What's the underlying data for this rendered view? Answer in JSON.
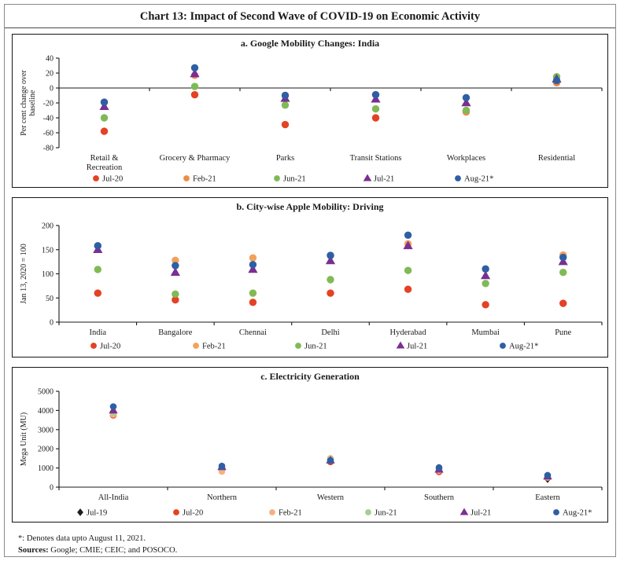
{
  "page": {
    "title": "Chart 13: Impact of Second Wave of COVID-19 on Economic Activity",
    "footnotes": {
      "line1": "*: Denotes data upto August 11, 2021.",
      "sources_label": "Sources:",
      "sources_text": " Google; CMIE; CEIC; and POSOCO."
    }
  },
  "chart_data": [
    {
      "id": "a",
      "type": "scatter",
      "title": "a. Google Mobility Changes: India",
      "ylabel_lines": [
        "Per cent change over",
        "baseline"
      ],
      "ylim": [
        -80,
        40
      ],
      "yticks": [
        40,
        20,
        0,
        -20,
        -40,
        -60,
        -80
      ],
      "baseline": 0,
      "grid": false,
      "legend_position": "bottom",
      "categories": [
        "Retail &\nRecreation",
        "Grocery & Pharmacy",
        "Parks",
        "Transit Stations",
        "Workplaces",
        "Residential"
      ],
      "series": [
        {
          "name": "Jul-20",
          "marker": "circle",
          "color": "#e34224",
          "values": [
            -58,
            -9,
            -49,
            -40,
            -32,
            7
          ]
        },
        {
          "name": "Feb-21",
          "marker": "circle",
          "color": "#ef8c42",
          "values": [
            -19,
            17,
            -10,
            -9,
            -32,
            7
          ]
        },
        {
          "name": "Jun-21",
          "marker": "circle",
          "color": "#80ba55",
          "values": [
            -40,
            2,
            -23,
            -28,
            -30,
            15
          ]
        },
        {
          "name": "Jul-21",
          "marker": "triangle",
          "color": "#7b2f92",
          "values": [
            -25,
            19,
            -14,
            -15,
            -20,
            12
          ]
        },
        {
          "name": "Aug-21*",
          "marker": "circle",
          "color": "#2e5fa5",
          "values": [
            -19,
            27,
            -10,
            -9,
            -13,
            10
          ]
        }
      ]
    },
    {
      "id": "b",
      "type": "scatter",
      "title": "b. City-wise Apple Mobility: Driving",
      "ylabel_lines": [
        "Jan 13, 2020 = 100"
      ],
      "ylim": [
        0,
        200
      ],
      "yticks": [
        200,
        150,
        100,
        50,
        0
      ],
      "baseline": 0,
      "grid": false,
      "legend_position": "bottom",
      "categories": [
        "India",
        "Bangalore",
        "Chennai",
        "Delhi",
        "Hyderabad",
        "Mumbai",
        "Pune"
      ],
      "series": [
        {
          "name": "Jul-20",
          "marker": "circle",
          "color": "#e34224",
          "values": [
            60,
            46,
            41,
            60,
            68,
            36,
            39
          ]
        },
        {
          "name": "Feb-21",
          "marker": "circle",
          "color": "#f2a15c",
          "values": [
            158,
            128,
            133,
            138,
            162,
            110,
            139
          ]
        },
        {
          "name": "Jun-21",
          "marker": "circle",
          "color": "#80ba55",
          "values": [
            109,
            58,
            60,
            88,
            107,
            80,
            103
          ]
        },
        {
          "name": "Jul-21",
          "marker": "triangle",
          "color": "#7b2f92",
          "values": [
            150,
            103,
            109,
            127,
            158,
            96,
            125
          ]
        },
        {
          "name": "Aug-21*",
          "marker": "circle",
          "color": "#2e5fa5",
          "values": [
            158,
            117,
            119,
            138,
            180,
            110,
            134
          ]
        }
      ]
    },
    {
      "id": "c",
      "type": "scatter",
      "title": "c. Electricity Generation",
      "ylabel_lines": [
        "Mega Unit (MU)"
      ],
      "ylim": [
        0,
        5000
      ],
      "yticks": [
        5000,
        4000,
        3000,
        2000,
        1000,
        0
      ],
      "baseline": 0,
      "grid": false,
      "legend_position": "bottom",
      "categories": [
        "All-India",
        "Northern",
        "Western",
        "Southern",
        "Eastern"
      ],
      "series": [
        {
          "name": "Jul-19",
          "marker": "diamond",
          "color": "#1f1f1f",
          "values": [
            3950,
            1000,
            1400,
            900,
            430
          ]
        },
        {
          "name": "Jul-20",
          "marker": "circle",
          "color": "#e34224",
          "values": [
            3750,
            950,
            1320,
            800,
            500
          ]
        },
        {
          "name": "Feb-21",
          "marker": "circle",
          "color": "#f4b183",
          "values": [
            3800,
            820,
            1500,
            870,
            520
          ]
        },
        {
          "name": "Jun-21",
          "marker": "circle",
          "color": "#a6cf8d",
          "values": [
            3900,
            1020,
            1430,
            950,
            540
          ]
        },
        {
          "name": "Jul-21",
          "marker": "triangle",
          "color": "#7b2f92",
          "values": [
            4000,
            1050,
            1400,
            920,
            560
          ]
        },
        {
          "name": "Aug-21*",
          "marker": "circle",
          "color": "#2e5fa5",
          "values": [
            4200,
            1100,
            1390,
            1020,
            620
          ]
        }
      ]
    }
  ]
}
